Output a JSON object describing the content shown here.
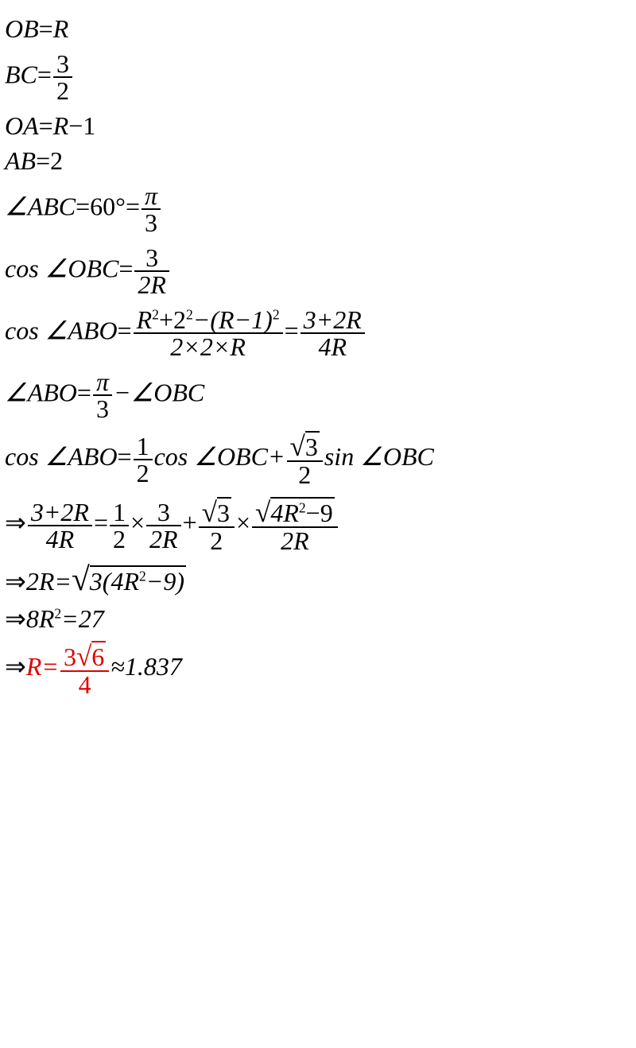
{
  "lines": {
    "l1": {
      "a": "OB",
      "b": "R"
    },
    "l2": {
      "a": "BC",
      "num": "3",
      "den": "2"
    },
    "l3": {
      "a": "OA",
      "b": "R",
      "c": "1"
    },
    "l4": {
      "a": "AB",
      "b": "2"
    },
    "l5": {
      "a": "∠ABC",
      "b": "60°",
      "num": "π",
      "den": "3"
    },
    "l6": {
      "a": "cos ∠OBC",
      "num": "3",
      "den": "2R"
    },
    "l7": {
      "a": "cos ∠ABO",
      "n1": "R",
      "e1": "2",
      "p": "+2",
      "e2": "2",
      "m": "−(R−1)",
      "e3": "2",
      "d1": "2×2×R",
      "n2": "3+2R",
      "d2": "4R"
    },
    "l8": {
      "a": "∠ABO",
      "num": "π",
      "den": "3",
      "b": "−∠OBC"
    },
    "l9": {
      "a": "cos ∠ABO",
      "n1": "1",
      "d1": "2",
      "b": "cos ∠OBC+",
      "rnum": "3",
      "rd": "2",
      "c": "sin ∠OBC"
    },
    "l10": {
      "arr": "⇒",
      "n1": "3+2R",
      "d1": "4R",
      "eq": "=",
      "n2": "1",
      "d2": "2",
      "x1": "×",
      "n3": "3",
      "d3": "2R",
      "p": "+",
      "r4n": "3",
      "r4d": "2",
      "x2": "×",
      "r5n": "4R",
      "r5e": "2",
      "r5m": "−9",
      "r5d": "2R"
    },
    "l11": {
      "arr": "⇒",
      "a": "2R=",
      "r": "3(4R",
      "e": "2",
      "m": "−9)"
    },
    "l12": {
      "arr": "⇒",
      "a": "8R",
      "e": "2",
      "b": "=27"
    },
    "l13": {
      "arr": "⇒",
      "a": "R=",
      "n": "3",
      "r": "6",
      "d": "4",
      "b": "≈1.837"
    }
  }
}
